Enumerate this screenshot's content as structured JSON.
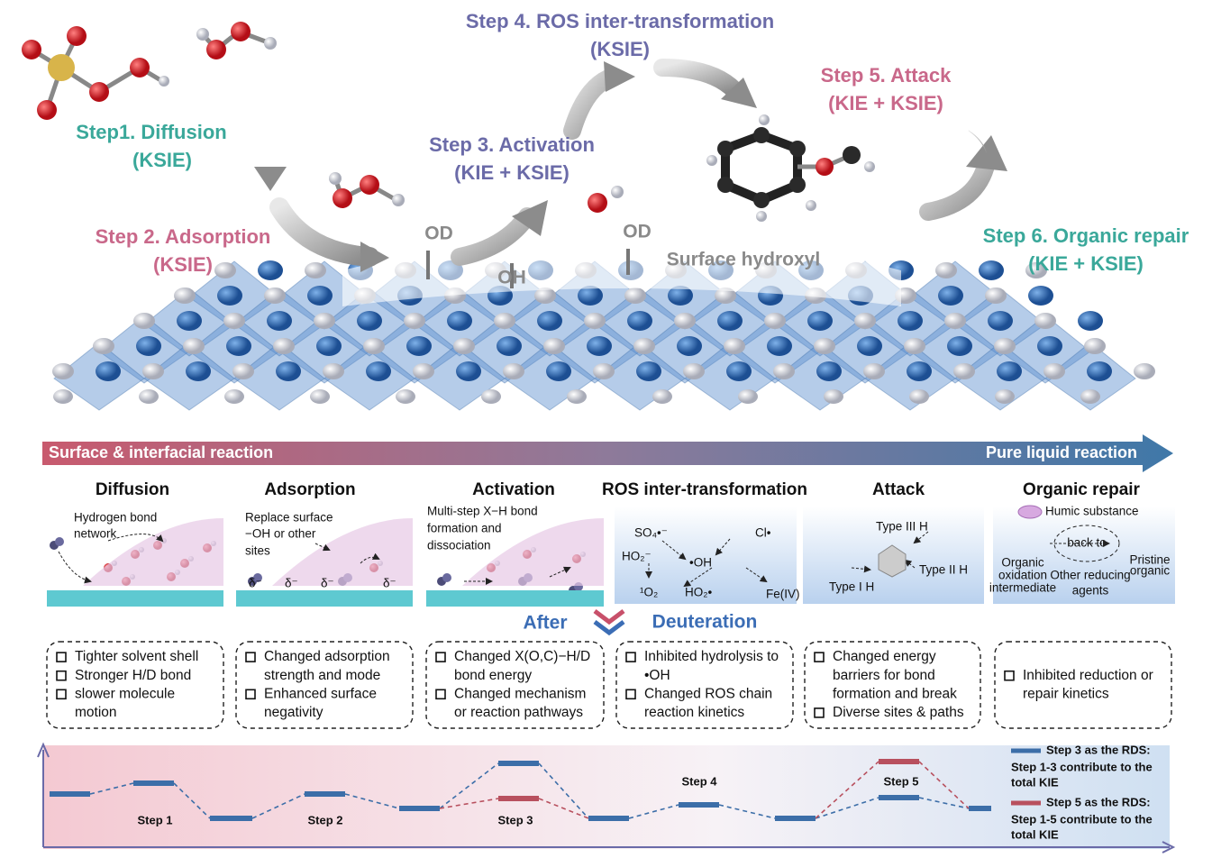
{
  "steps": [
    {
      "title": "Step1. Diffusion",
      "tag": "(KSIE)"
    },
    {
      "title": "Step 2. Adsorption",
      "tag": "(KSIE)"
    },
    {
      "title": "Step 3. Activation",
      "tag": "(KIE + KSIE)"
    },
    {
      "title": "Step 4. ROS inter-transformation",
      "tag": "(KSIE)"
    },
    {
      "title": "Step 5. Attack",
      "tag": "(KIE + KSIE)"
    },
    {
      "title": "Step 6. Organic repair",
      "tag": "(KIE + KSIE)"
    }
  ],
  "surface_labels": [
    "OD",
    "OH",
    "OD",
    "Surface hydroxyl"
  ],
  "gradient": {
    "left": "Surface & interfacial reaction",
    "right": "Pure liquid reaction"
  },
  "panels": [
    {
      "heading": "Diffusion",
      "labels": [
        "Hydrogen bond",
        "network"
      ],
      "effects": [
        [
          "Tighter solvent shell"
        ],
        [
          "Stronger H/D bond"
        ],
        [
          "slower molecule",
          "motion"
        ]
      ]
    },
    {
      "heading": "Adsorption",
      "labels": [
        "Replace surface",
        "−OH or other",
        "sites",
        "δ⁻"
      ],
      "effects": [
        [
          "Changed adsorption",
          "strength and mode"
        ],
        [
          "Enhanced surface",
          "negativity"
        ]
      ]
    },
    {
      "heading": "Activation",
      "labels": [
        "Multi-step X−H bond",
        "formation and",
        "dissociation"
      ],
      "effects": [
        [
          "Changed X(O,C)−H/D",
          "bond energy"
        ],
        [
          "Changed mechanism",
          "or reaction pathways"
        ]
      ]
    },
    {
      "heading": "ROS inter-transformation",
      "labels": [
        "SO₄•⁻",
        "Cl•",
        "HO₂⁻",
        "•OH",
        "¹O₂",
        "HO₂•",
        "Fe(IV)"
      ],
      "effects": [
        [
          "Inhibited hydrolysis to",
          "•OH"
        ],
        [
          "Changed ROS chain",
          "reaction kinetics"
        ]
      ]
    },
    {
      "heading": "Attack",
      "labels": [
        "Type III H",
        "Type II H",
        "Type I H"
      ],
      "effects": [
        [
          "Changed energy",
          "barriers for bond",
          "formation and break"
        ],
        [
          "Diverse sites & paths"
        ]
      ]
    },
    {
      "heading": "Organic repair",
      "labels": [
        "Humic substance",
        "back to",
        "Organic",
        "oxidation",
        "intermediate",
        "Other reducing",
        "agents",
        "Pristine",
        "organic"
      ],
      "effects": [
        [
          "Inhibited reduction or",
          "repair kinetics"
        ]
      ]
    }
  ],
  "transition": {
    "left": "After",
    "right": "Deuteration"
  },
  "energy": {
    "steps": [
      "Step 1",
      "Step 2",
      "Step 3",
      "Step 4",
      "Step 5"
    ],
    "legend": [
      {
        "title": "Step 3 as the RDS:",
        "lines": [
          "Step 1-3 contribute to the",
          "total KIE"
        ],
        "color": "#3c6ea8"
      },
      {
        "title": "Step 5 as the RDS:",
        "lines": [
          "Step 1-5 contribute to the",
          "total KIE"
        ],
        "color": "#b8505e"
      }
    ]
  }
}
